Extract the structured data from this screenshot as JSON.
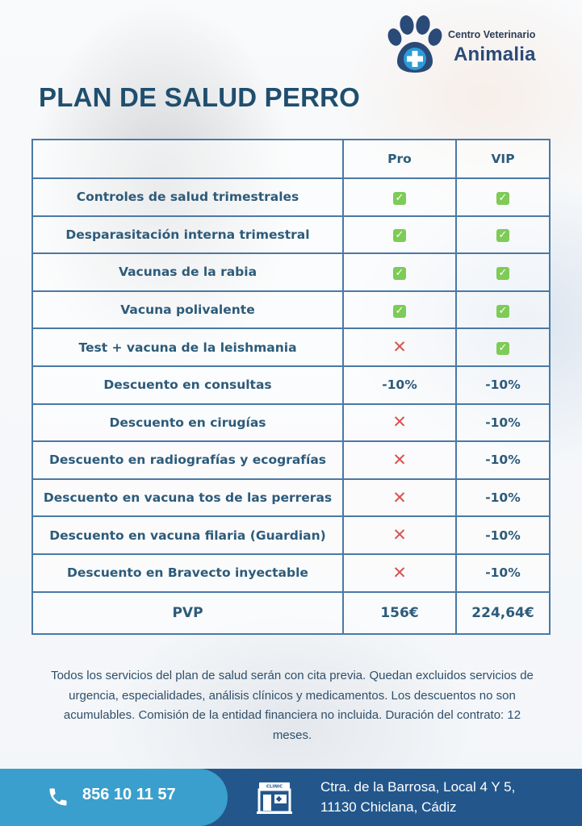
{
  "brand": {
    "line1": "Centro Veterinario",
    "line2": "Animalia",
    "color_primary": "#2a4a78",
    "color_accent": "#2b9cd8"
  },
  "title": "PLAN DE SALUD PERRO",
  "table": {
    "headers": [
      "",
      "Pro",
      "VIP"
    ],
    "rows": [
      {
        "feature": "Controles de salud trimestrales",
        "pro": "check",
        "vip": "check"
      },
      {
        "feature": "Desparasitación interna trimestral",
        "pro": "check",
        "vip": "check"
      },
      {
        "feature": "Vacunas de la rabia",
        "pro": "check",
        "vip": "check"
      },
      {
        "feature": "Vacuna polivalente",
        "pro": "check",
        "vip": "check"
      },
      {
        "feature": "Test + vacuna de la leishmania",
        "pro": "cross",
        "vip": "check"
      },
      {
        "feature": "Descuento en consultas",
        "pro": "-10%",
        "vip": "-10%"
      },
      {
        "feature": "Descuento en cirugías",
        "pro": "cross",
        "vip": "-10%"
      },
      {
        "feature": "Descuento en radiografías y ecografías",
        "pro": "cross",
        "vip": "-10%"
      },
      {
        "feature": "Descuento en vacuna tos de las perreras",
        "pro": "cross",
        "vip": "-10%"
      },
      {
        "feature": "Descuento en vacuna filaria (Guardian)",
        "pro": "cross",
        "vip": "-10%"
      },
      {
        "feature": "Descuento en Bravecto inyectable",
        "pro": "cross",
        "vip": "-10%"
      }
    ],
    "price_row": {
      "label": "PVP",
      "pro": "156€",
      "vip": "224,64€"
    },
    "colors": {
      "border": "#4a79a5",
      "text": "#2d5b7a",
      "check": "#7ecb57",
      "cross": "#d9534f"
    }
  },
  "note": "Todos los servicios del plan de salud serán con cita previa. Quedan excluidos servicios de urgencia, especialidades,  análisis clínicos y medicamentos. Los descuentos no son acumulables. Comisión de la entidad financiera no incluida. Duración del contrato: 12 meses.",
  "footer": {
    "phone_icon": "phone-icon",
    "phone": "856 10 11 57",
    "clinic_icon": "clinic-building-icon",
    "clinic_sign": "CLINIC",
    "address_line1": "Ctra. de la Barrosa, Local 4 Y 5,",
    "address_line2": "11130 Chiclana, Cádiz",
    "colors": {
      "bar": "#23578c",
      "pill": "#3a9fcc"
    }
  }
}
